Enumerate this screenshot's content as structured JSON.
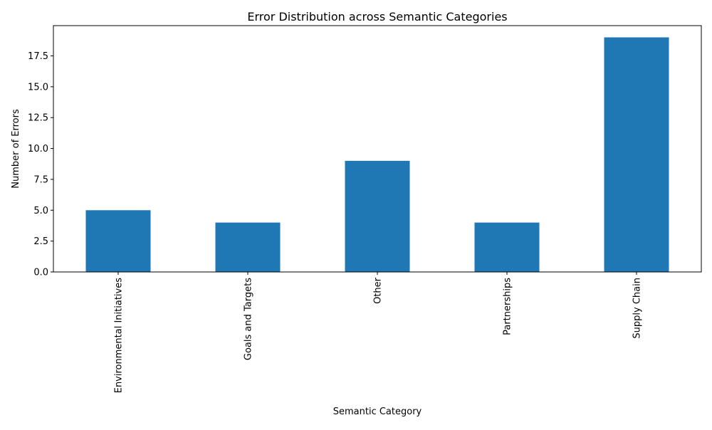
{
  "chart_data": {
    "type": "bar",
    "title": "Error Distribution across Semantic Categories",
    "xlabel": "Semantic Category",
    "ylabel": "Number of Errors",
    "categories": [
      "Environmental Initiatives",
      "Goals and Targets",
      "Other",
      "Partnerships",
      "Supply Chain"
    ],
    "values": [
      5,
      4,
      9,
      4,
      19
    ],
    "ylim": [
      0,
      19.95
    ],
    "yticks": [
      0.0,
      2.5,
      5.0,
      7.5,
      10.0,
      12.5,
      15.0,
      17.5
    ],
    "ytick_labels": [
      "0.0",
      "2.5",
      "5.0",
      "7.5",
      "10.0",
      "12.5",
      "15.0",
      "17.5"
    ],
    "grid": false,
    "legend": "none",
    "bar_color": "#1f77b4"
  }
}
